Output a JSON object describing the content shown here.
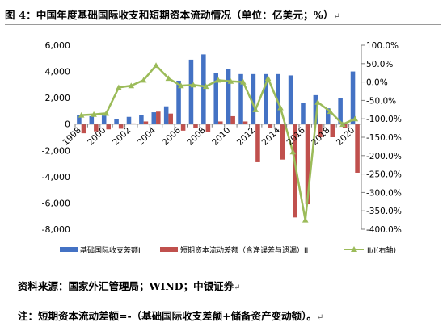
{
  "title": "图 4：中国年度基础国际收支和短期资本流动情况（单位：亿美元；%）",
  "source": "资料来源：国家外汇管理局；WIND；中银证券",
  "note": "注：短期资本流动差额=-（基础国际收支差额+储备资产变动额）。",
  "colors": {
    "basic": "#4472C4",
    "short": "#C0504D",
    "ratio": "#9BBB59",
    "axis": "#7f7f7f"
  },
  "chart_data": {
    "type": "bar",
    "categories": [
      "1998",
      "1999",
      "2000",
      "2001",
      "2002",
      "2003",
      "2004",
      "2005",
      "2006",
      "2007",
      "2008",
      "2009",
      "2010",
      "2011",
      "2012",
      "2013",
      "2014",
      "2015",
      "2016",
      "2017",
      "2018",
      "2019",
      "2020"
    ],
    "x_tick_labels": [
      "1998",
      "2000",
      "2002",
      "2004",
      "2006",
      "2008",
      "2010",
      "2012",
      "2014",
      "2016",
      "2018",
      "2020"
    ],
    "y_ticks": [
      "6,000",
      "4,000",
      "2,000",
      "0",
      "-2,000",
      "-4,000",
      "-6,000",
      "-8,000"
    ],
    "y2_ticks": [
      "100.0%",
      "50.0%",
      "0.0%",
      "-50.0%",
      "-100.0%",
      "-150.0%",
      "-200.0%",
      "-250.0%",
      "-300.0%",
      "-350.0%",
      "-400.0%"
    ],
    "ylim": [
      -8000,
      6000
    ],
    "y2lim": [
      -400,
      100
    ],
    "series": [
      {
        "name": "基础国际收支差额I",
        "kind": "bar",
        "values": [
          700,
          600,
          650,
          400,
          550,
          700,
          900,
          1350,
          3300,
          4900,
          5300,
          3900,
          4200,
          3800,
          3800,
          3800,
          3800,
          3700,
          1600,
          2200,
          1200,
          2000,
          4000
        ]
      },
      {
        "name": "短期资本流动差额（含净误差与遗漏）II",
        "kind": "bar",
        "values": [
          -700,
          -550,
          -400,
          -350,
          50,
          200,
          950,
          800,
          -500,
          -300,
          -600,
          200,
          600,
          200,
          -2900,
          -300,
          -2700,
          -7100,
          -6100,
          -1000,
          -1000,
          -300,
          -3700
        ]
      },
      {
        "name": "II/I(右轴)",
        "kind": "line",
        "values": [
          -90,
          -88,
          -85,
          -15,
          -10,
          5,
          45,
          10,
          -10,
          -8,
          -12,
          5,
          2,
          0,
          -75,
          10,
          -70,
          -190,
          -375,
          -55,
          -80,
          -115,
          -100
        ]
      }
    ]
  }
}
